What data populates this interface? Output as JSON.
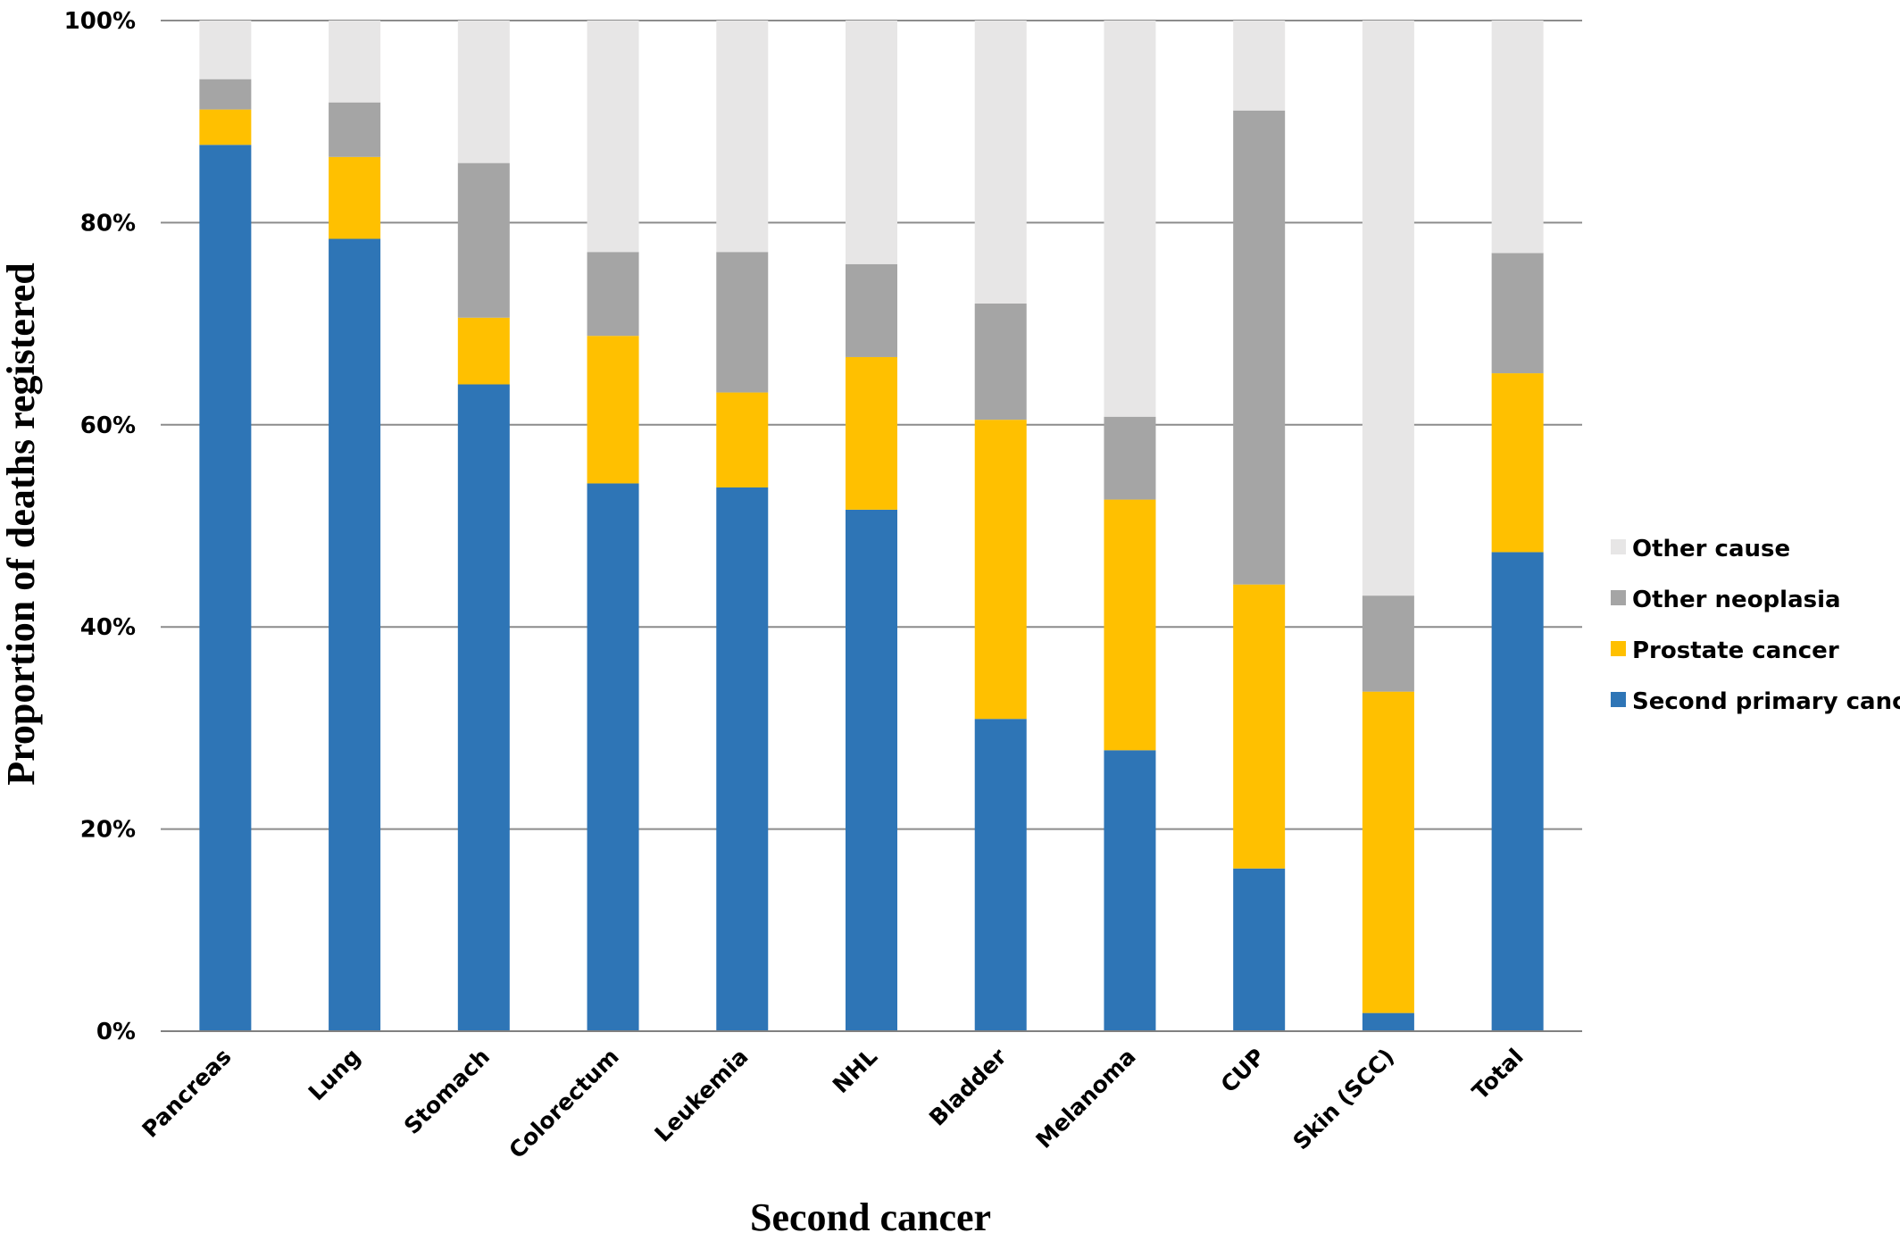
{
  "chart_data": {
    "type": "bar",
    "stacked": true,
    "xlabel": "Second cancer",
    "ylabel": "Proportion of deaths registered",
    "ylim": [
      0,
      100
    ],
    "yticks": [
      0,
      20,
      40,
      60,
      80,
      100
    ],
    "ytick_suffix": "%",
    "grid": true,
    "legend_position": "right",
    "categories": [
      "Pancreas",
      "Lung",
      "Stomach",
      "Colorectum",
      "Leukemia",
      "NHL",
      "Bladder",
      "Melanoma",
      "CUP",
      "Skin (SCC)",
      "Total"
    ],
    "series": [
      {
        "name": "Second primary cancer",
        "color": "#2E75B6",
        "values": [
          87.7,
          78.4,
          64.0,
          54.2,
          53.8,
          51.6,
          30.9,
          27.8,
          16.1,
          1.8,
          47.4
        ]
      },
      {
        "name": "Prostate cancer",
        "color": "#FFC000",
        "values": [
          3.5,
          8.1,
          6.6,
          14.6,
          9.4,
          15.1,
          29.6,
          24.8,
          28.1,
          31.8,
          17.7
        ]
      },
      {
        "name": "Other neoplasia",
        "color": "#A5A5A5",
        "values": [
          3.0,
          5.4,
          15.3,
          8.3,
          13.9,
          9.2,
          11.5,
          8.2,
          46.9,
          9.5,
          11.9
        ]
      },
      {
        "name": "Other cause",
        "color": "#E7E6E6",
        "values": [
          5.8,
          8.1,
          14.1,
          22.9,
          22.9,
          24.1,
          28.0,
          39.2,
          8.9,
          56.9,
          23.0
        ]
      }
    ],
    "legend_order": [
      "Other cause",
      "Other neoplasia",
      "Prostate cancer",
      "Second primary cancer"
    ]
  }
}
